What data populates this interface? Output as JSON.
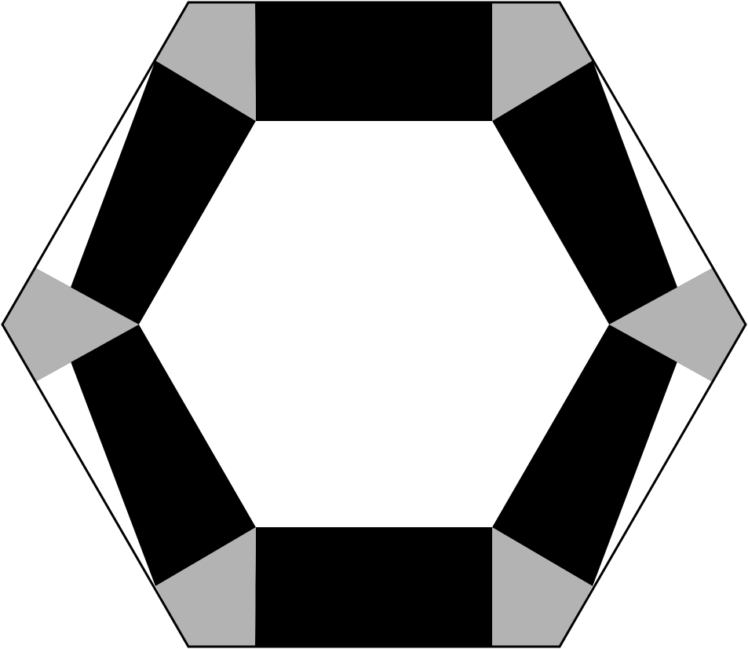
{
  "diagram": {
    "shape": "hexagonal-ring",
    "colors": {
      "background": "#ffffff",
      "band": "#000000",
      "corner": "#b3b3b3",
      "outline": "#000000",
      "inner": "#ffffff"
    },
    "bands": [
      {
        "id": "top"
      },
      {
        "id": "upper-right"
      },
      {
        "id": "lower-right"
      },
      {
        "id": "bottom"
      },
      {
        "id": "lower-left"
      },
      {
        "id": "upper-left"
      }
    ],
    "corners": [
      {
        "id": "top-right"
      },
      {
        "id": "right"
      },
      {
        "id": "bottom-right"
      },
      {
        "id": "bottom-left"
      },
      {
        "id": "left"
      },
      {
        "id": "top-left"
      }
    ]
  }
}
